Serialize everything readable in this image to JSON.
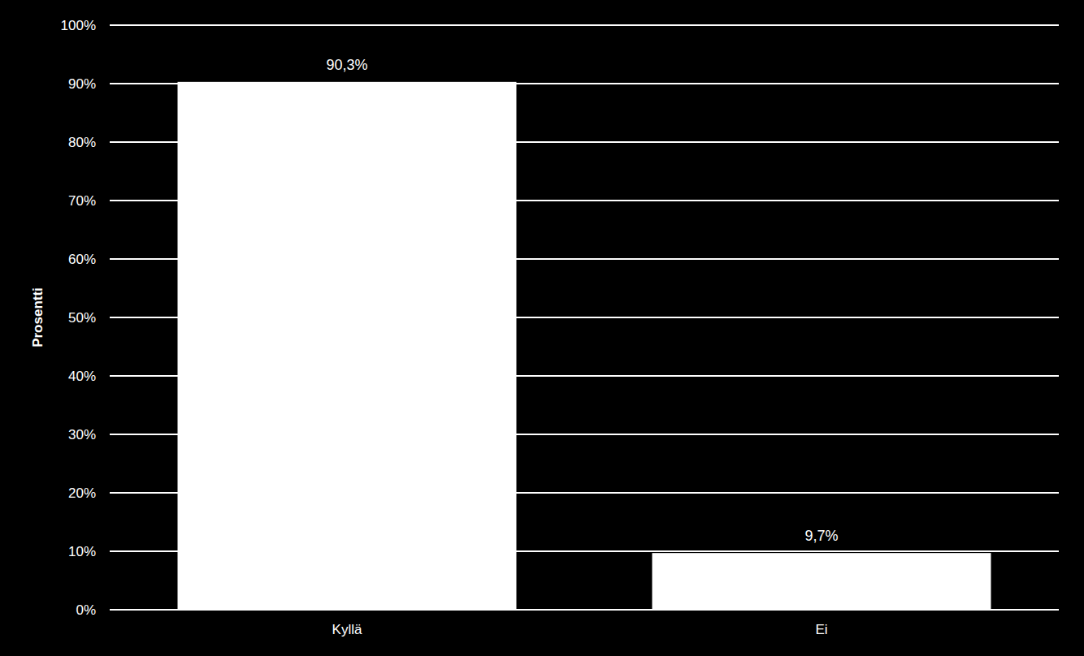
{
  "chart_data": {
    "type": "bar",
    "categories": [
      "Kyllä",
      "Ei"
    ],
    "values": [
      90.3,
      9.7
    ],
    "value_labels": [
      "90,3%",
      "9,7%"
    ],
    "data_labels": true,
    "color": "#ffffff",
    "y_label": "Prosentti",
    "ylim": [
      0,
      100
    ],
    "yticks": [
      {
        "value": 0,
        "label": "0%"
      },
      {
        "value": 10,
        "label": "10%"
      },
      {
        "value": 20,
        "label": "20%"
      },
      {
        "value": 30,
        "label": "30%"
      },
      {
        "value": 40,
        "label": "40%"
      },
      {
        "value": 50,
        "label": "50%"
      },
      {
        "value": 60,
        "label": "60%"
      },
      {
        "value": 70,
        "label": "70%"
      },
      {
        "value": 80,
        "label": "80%"
      },
      {
        "value": 90,
        "label": "90%"
      },
      {
        "value": 100,
        "label": "100%"
      }
    ],
    "grid": true
  }
}
